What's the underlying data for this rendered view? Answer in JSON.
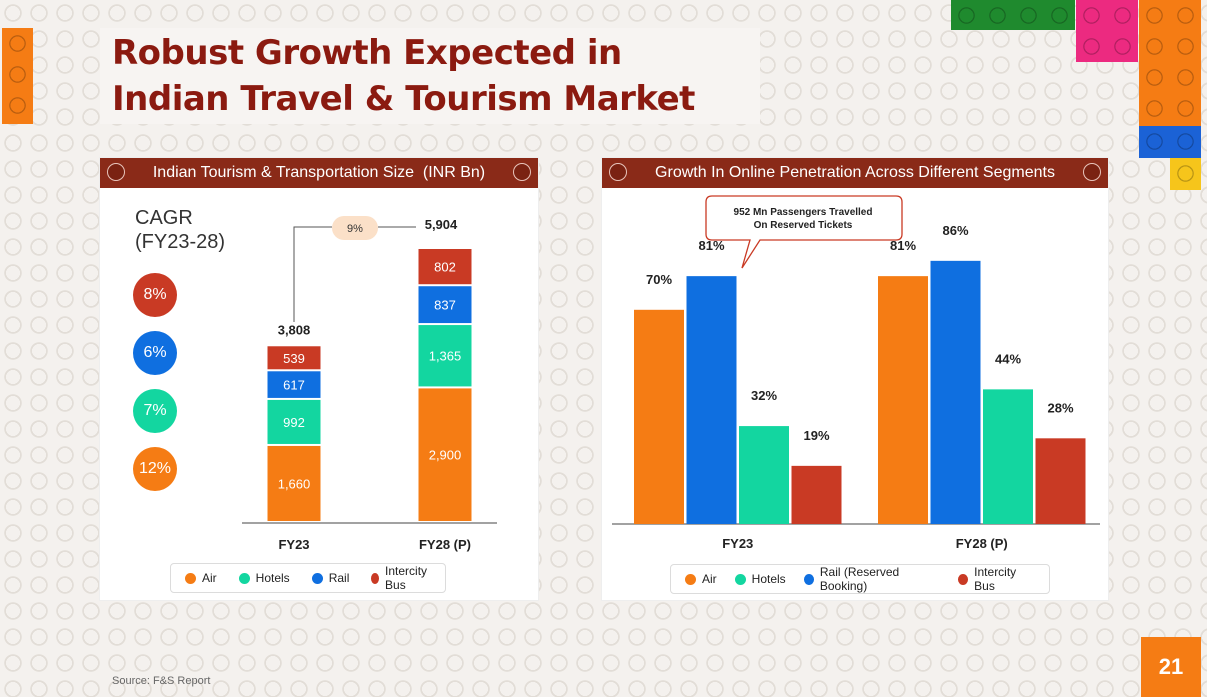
{
  "title_line1": "Robust Growth Expected in",
  "title_line2": "Indian Travel & Tourism Market",
  "colors": {
    "air": "#f57c14",
    "hotels": "#13d6a0",
    "rail": "#0f6fe0",
    "bus": "#c93a24",
    "header": "#8a2a18",
    "title": "#8b1a10"
  },
  "left_panel": {
    "header": "Indian Tourism & Transportation Size  (INR Bn)",
    "cagr_label_line1": "CAGR",
    "cagr_label_line2": "(FY23-28)",
    "cagr_values": [
      {
        "series": "Intercity Bus",
        "value": "8%"
      },
      {
        "series": "Rail",
        "value": "6%"
      },
      {
        "series": "Hotels",
        "value": "7%"
      },
      {
        "series": "Air",
        "value": "12%"
      }
    ],
    "growth_badge": "9%",
    "legend": [
      "Air",
      "Hotels",
      "Rail",
      "Intercity Bus"
    ]
  },
  "right_panel": {
    "header": "Growth In Online Penetration Across Different Segments",
    "callout_line1": "952 Mn Passengers Travelled",
    "callout_line2": "On Reserved Tickets",
    "legend": [
      "Air",
      "Hotels",
      "Rail (Reserved Booking)",
      "Intercity Bus"
    ]
  },
  "chart_data": [
    {
      "type": "bar",
      "stacked": true,
      "title": "Indian Tourism & Transportation Size  (INR Bn)",
      "categories": [
        "FY23",
        "FY28 (P)"
      ],
      "totals": [
        3808,
        5904
      ],
      "total_labels": [
        "3,808",
        "5,904"
      ],
      "series": [
        {
          "name": "Air",
          "values": [
            1660,
            2900
          ],
          "labels": [
            "1,660",
            "2,900"
          ]
        },
        {
          "name": "Hotels",
          "values": [
            992,
            1365
          ],
          "labels": [
            "992",
            "1,365"
          ]
        },
        {
          "name": "Rail",
          "values": [
            617,
            837
          ],
          "labels": [
            "617",
            "837"
          ]
        },
        {
          "name": "Intercity Bus",
          "values": [
            539,
            802
          ],
          "labels": [
            "539",
            "802"
          ]
        }
      ],
      "ylim": [
        0,
        5904
      ]
    },
    {
      "type": "bar",
      "title": "Growth In Online Penetration Across Different Segments",
      "categories": [
        "FY23",
        "FY28 (P)"
      ],
      "series": [
        {
          "name": "Air",
          "values": [
            70,
            81
          ],
          "labels": [
            "70%",
            "81%"
          ]
        },
        {
          "name": "Rail (Reserved Booking)",
          "values": [
            81,
            86
          ],
          "labels": [
            "81%",
            "86%"
          ]
        },
        {
          "name": "Hotels",
          "values": [
            32,
            44
          ],
          "labels": [
            "32%",
            "44%"
          ]
        },
        {
          "name": "Intercity Bus",
          "values": [
            19,
            28
          ],
          "labels": [
            "19%",
            "28%"
          ]
        }
      ],
      "ylim": [
        0,
        100
      ]
    }
  ],
  "source": "Source: F&S Report",
  "page_number": "21"
}
